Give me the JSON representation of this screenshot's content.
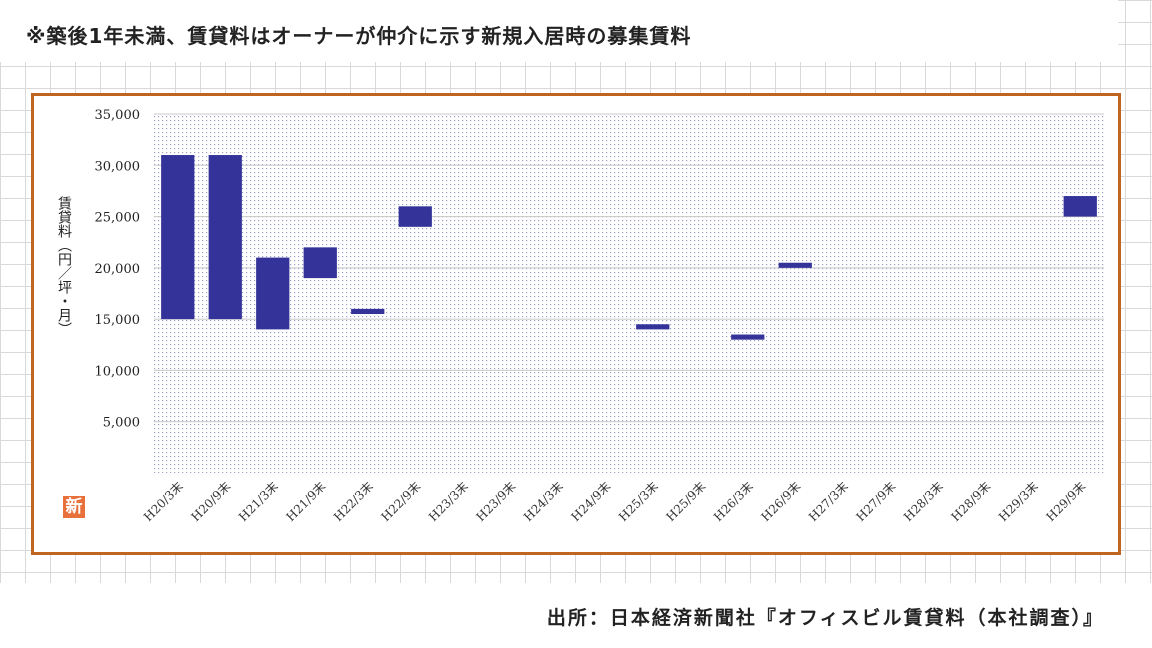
{
  "header": {
    "note": "※築後1年未満、賃貸料はオーナーが仲介に示す新規入居時の募集賃料"
  },
  "footer": {
    "source": "出所：日本経済新聞社『オフィスビル賃貸料（本社調査）』"
  },
  "logo": {
    "text": "新",
    "color": "#e8703a"
  },
  "chart_data": {
    "type": "bar",
    "subtype": "floating-range",
    "ylabel": "賃貸料（円／坪・月）",
    "ylim": [
      0,
      35000
    ],
    "yticks": [
      "5,000",
      "10,000",
      "15,000",
      "20,000",
      "25,000",
      "30,000",
      "35,000"
    ],
    "ytick_values": [
      5000,
      10000,
      15000,
      20000,
      25000,
      30000,
      35000
    ],
    "categories": [
      "H20/3末",
      "H20/9末",
      "H21/3末",
      "H21/9末",
      "H22/3末",
      "H22/9末",
      "H23/3末",
      "H23/9末",
      "H24/3末",
      "H24/9末",
      "H25/3末",
      "H25/9末",
      "H26/3末",
      "H26/9末",
      "H27/3末",
      "H27/9末",
      "H28/3末",
      "H28/9末",
      "H29/3末",
      "H29/9末"
    ],
    "series": [
      {
        "low": [
          15000,
          15000,
          14000,
          19000,
          15500,
          24000,
          null,
          null,
          null,
          null,
          14000,
          null,
          13000,
          20000,
          null,
          null,
          null,
          null,
          null,
          25000
        ],
        "high": [
          31000,
          31000,
          21000,
          22000,
          16000,
          26000,
          null,
          null,
          null,
          null,
          14500,
          null,
          13500,
          20500,
          null,
          null,
          null,
          null,
          null,
          27000
        ]
      }
    ],
    "bar_color": "#333399",
    "frame_color": "#c0651f",
    "grid": true,
    "legend": "none"
  }
}
